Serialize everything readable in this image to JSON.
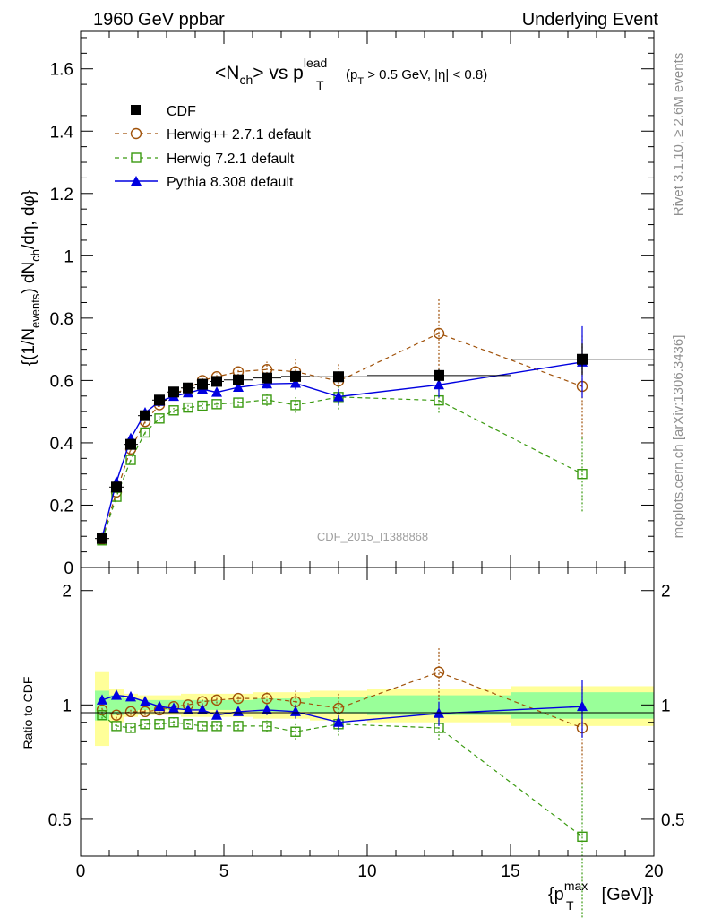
{
  "header": {
    "left": "1960 GeV ppbar",
    "right": "Underlying Event"
  },
  "side": {
    "rivet": "Rivet 3.1.10, ≥ 2.6M events",
    "mcplots": "mcplots.cern.ch [arXiv:1306.3436]"
  },
  "chart_data": {
    "type": "line",
    "title_main": "<N",
    "title_main_sub": "ch",
    "title_mid": "> vs p",
    "title_sup": "lead",
    "title_sub": "T",
    "title_cut": "(p",
    "title_cut_sub": "T",
    "title_cut_rest": " > 0.5 GeV, |η| < 0.8)",
    "watermark": "CDF_2015_I1388868",
    "ylabel": "{(1/N_events) dN_ch/dη, dφ}",
    "ylabel_parts": {
      "a": "{(1/N",
      "a_sub": "events",
      "b": ") dN",
      "b_sub": "ch",
      "c": "/dη, dφ}"
    },
    "ratio_ylabel": "Ratio to CDF",
    "xlabel_parts": {
      "a": "{p",
      "a_sub": "T",
      "a_sup": "max",
      "b": " [GeV]}"
    },
    "xlim": [
      0,
      20
    ],
    "ylim": [
      0,
      1.72
    ],
    "ratio_ylim": [
      0.4,
      2.3
    ],
    "ratio_scale": "log",
    "x_ticks": [
      "0",
      "5",
      "10",
      "15",
      "20"
    ],
    "x_tick_values": [
      0,
      5,
      10,
      15,
      20
    ],
    "y_ticks": [
      "0",
      "0.2",
      "0.4",
      "0.6",
      "0.8",
      "1",
      "1.2",
      "1.4",
      "1.6"
    ],
    "y_tick_values": [
      0,
      0.2,
      0.4,
      0.6,
      0.8,
      1.0,
      1.2,
      1.4,
      1.6
    ],
    "ratio_ticks": [
      "0.5",
      "1",
      "2"
    ],
    "ratio_tick_values": [
      0.5,
      1,
      2
    ],
    "legend_position": "top-left",
    "bins": [
      [
        0.5,
        1.0
      ],
      [
        1.0,
        1.5
      ],
      [
        1.5,
        2.0
      ],
      [
        2.0,
        2.5
      ],
      [
        2.5,
        3.0
      ],
      [
        3.0,
        3.5
      ],
      [
        3.5,
        4.0
      ],
      [
        4.0,
        4.5
      ],
      [
        4.5,
        5.0
      ],
      [
        5.0,
        6.0
      ],
      [
        6.0,
        7.0
      ],
      [
        7.0,
        8.0
      ],
      [
        8.0,
        10.0
      ],
      [
        10.0,
        15.0
      ],
      [
        15.0,
        20.0
      ]
    ],
    "x": [
      0.75,
      1.25,
      1.75,
      2.25,
      2.75,
      3.25,
      3.75,
      4.25,
      4.75,
      5.5,
      6.5,
      7.5,
      9.0,
      12.5,
      17.5
    ],
    "series": [
      {
        "name": "CDF",
        "color": "#000000",
        "marker": "square-filled",
        "values": [
          0.093,
          0.258,
          0.395,
          0.487,
          0.537,
          0.563,
          0.576,
          0.588,
          0.597,
          0.602,
          0.608,
          0.613,
          0.612,
          0.616,
          0.668
        ],
        "errors": [
          0.004,
          0.007,
          0.009,
          0.01,
          0.01,
          0.011,
          0.011,
          0.012,
          0.012,
          0.012,
          0.013,
          0.014,
          0.016,
          0.02,
          0.05
        ]
      },
      {
        "name": "Herwig++ 2.7.1 default",
        "color": "#a0520a",
        "marker": "circle-open",
        "dash": "5,4",
        "values": [
          0.09,
          0.242,
          0.38,
          0.468,
          0.522,
          0.557,
          0.575,
          0.6,
          0.612,
          0.628,
          0.635,
          0.628,
          0.598,
          0.751,
          0.581
        ],
        "errors": [
          0.002,
          0.004,
          0.005,
          0.006,
          0.007,
          0.008,
          0.009,
          0.01,
          0.012,
          0.012,
          0.025,
          0.045,
          0.055,
          0.115,
          0.165
        ]
      },
      {
        "name": "Herwig 7.2.1 default",
        "color": "#3a9a10",
        "marker": "square-open",
        "dash": "5,4",
        "values": [
          0.087,
          0.227,
          0.345,
          0.433,
          0.478,
          0.504,
          0.513,
          0.519,
          0.524,
          0.529,
          0.538,
          0.521,
          0.547,
          0.536,
          0.3
        ],
        "errors": [
          0.002,
          0.004,
          0.005,
          0.006,
          0.007,
          0.008,
          0.009,
          0.01,
          0.011,
          0.012,
          0.02,
          0.025,
          0.04,
          0.04,
          0.12
        ]
      },
      {
        "name": "Pythia 8.308 default",
        "color": "#0000e0",
        "marker": "triangle-filled",
        "dash": "",
        "values": [
          0.096,
          0.274,
          0.414,
          0.496,
          0.533,
          0.549,
          0.56,
          0.572,
          0.562,
          0.578,
          0.589,
          0.591,
          0.548,
          0.586,
          0.659
        ],
        "errors": [
          0.002,
          0.004,
          0.005,
          0.006,
          0.007,
          0.008,
          0.009,
          0.01,
          0.011,
          0.012,
          0.015,
          0.02,
          0.025,
          0.04,
          0.115
        ]
      }
    ],
    "ratio_series": [
      {
        "name": "Herwig++ 2.7.1 default",
        "values": [
          0.97,
          0.94,
          0.96,
          0.96,
          0.97,
          0.99,
          1.0,
          1.02,
          1.03,
          1.04,
          1.04,
          1.02,
          0.98,
          1.22,
          0.87
        ],
        "errors": [
          0.02,
          0.02,
          0.02,
          0.02,
          0.02,
          0.02,
          0.02,
          0.02,
          0.02,
          0.02,
          0.04,
          0.07,
          0.09,
          0.19,
          0.25
        ]
      },
      {
        "name": "Herwig 7.2.1 default",
        "values": [
          0.94,
          0.88,
          0.87,
          0.89,
          0.89,
          0.9,
          0.89,
          0.88,
          0.88,
          0.88,
          0.88,
          0.85,
          0.89,
          0.87,
          0.45
        ],
        "errors": [
          0.02,
          0.02,
          0.02,
          0.02,
          0.02,
          0.02,
          0.02,
          0.02,
          0.02,
          0.02,
          0.03,
          0.04,
          0.06,
          0.06,
          0.18
        ]
      },
      {
        "name": "Pythia 8.308 default",
        "values": [
          1.03,
          1.06,
          1.05,
          1.02,
          0.99,
          0.98,
          0.97,
          0.97,
          0.94,
          0.96,
          0.97,
          0.96,
          0.9,
          0.95,
          0.99
        ],
        "errors": [
          0.02,
          0.02,
          0.02,
          0.02,
          0.02,
          0.02,
          0.02,
          0.02,
          0.02,
          0.02,
          0.03,
          0.04,
          0.04,
          0.07,
          0.17
        ]
      }
    ],
    "band_inner": [
      0.09,
      0.06,
      0.04,
      0.03,
      0.03,
      0.03,
      0.03,
      0.03,
      0.03,
      0.03,
      0.04,
      0.04,
      0.05,
      0.06,
      0.08
    ],
    "band_outer": [
      0.22,
      0.1,
      0.07,
      0.06,
      0.06,
      0.06,
      0.07,
      0.07,
      0.07,
      0.07,
      0.08,
      0.08,
      0.09,
      0.1,
      0.12
    ],
    "band_colors": {
      "inner": "#99ff99",
      "outer": "#ffff99"
    }
  }
}
